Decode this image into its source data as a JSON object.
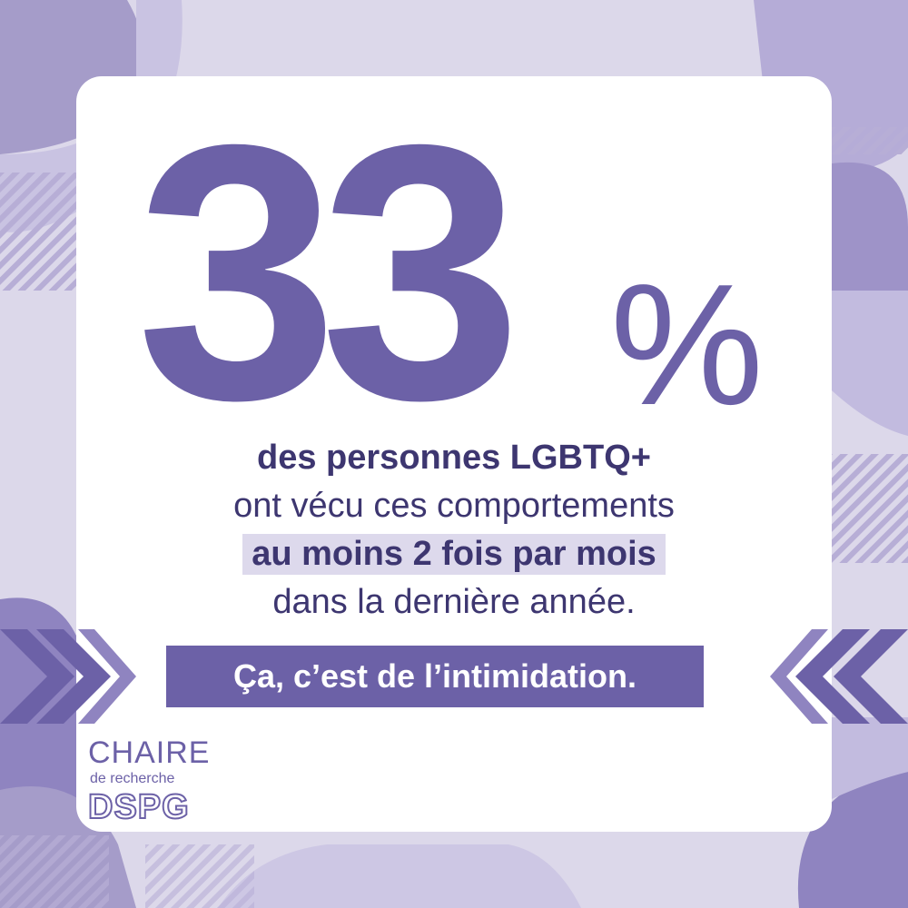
{
  "stat": {
    "number": "33",
    "percent_sign": "%"
  },
  "message": {
    "line1": "des personnes LGBTQ+",
    "line2": "ont vécu ces comportements",
    "line3_highlight": "au moins 2 fois par mois",
    "line4": "dans la dernière année."
  },
  "banner": {
    "text": "Ça, c’est de l’intimidation."
  },
  "logo": {
    "chaire": "CHAIRE",
    "sub": "de recherche",
    "acronym": "DSPG"
  },
  "colors": {
    "primary": "#6c61a7",
    "dark_text": "#3d3670",
    "highlight": "#ddd9ec",
    "background": "#dcd8ea"
  },
  "icons": [
    "chevrons-right-icon",
    "chevrons-left-icon"
  ]
}
